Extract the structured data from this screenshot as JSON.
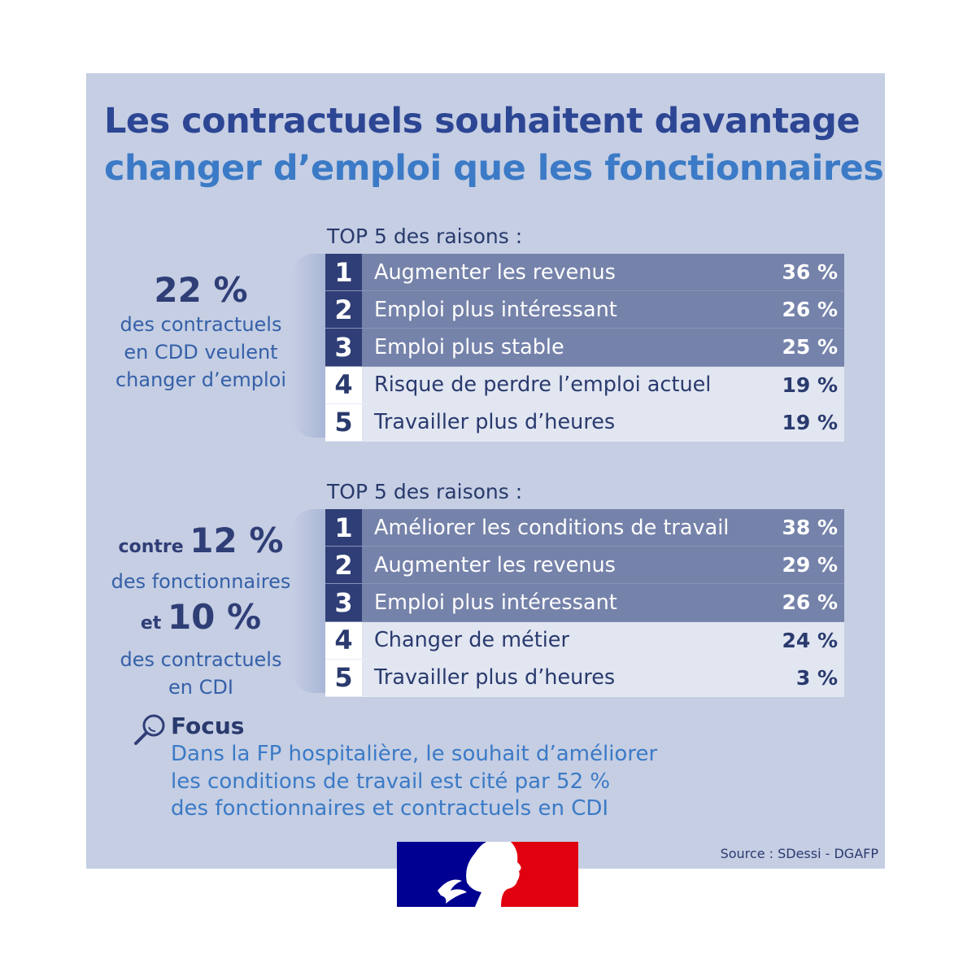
{
  "title": {
    "line1": "Les contractuels souhaitent davantage",
    "line2": "changer d’emploi que les fonctionnaires"
  },
  "section1": {
    "stat": "22 %",
    "desc": [
      "des contractuels",
      "en CDD veulent",
      "changer d’emploi"
    ],
    "top_label": "TOP 5 des raisons :",
    "rows": [
      {
        "rank": "1",
        "label": "Augmenter les revenus",
        "value": "36 %"
      },
      {
        "rank": "2",
        "label": "Emploi plus intéressant",
        "value": "26 %"
      },
      {
        "rank": "3",
        "label": "Emploi plus stable",
        "value": "25 %"
      },
      {
        "rank": "4",
        "label": "Risque de perdre l’emploi actuel",
        "value": "19 %"
      },
      {
        "rank": "5",
        "label": "Travailler plus d’heures",
        "value": "19 %"
      }
    ]
  },
  "section2": {
    "prefix1": "contre",
    "stat1": "12 %",
    "desc1": "des fonctionnaires",
    "prefix2": "et",
    "stat2": "10 %",
    "desc2": [
      "des contractuels",
      "en CDI"
    ],
    "top_label": "TOP 5 des raisons :",
    "rows": [
      {
        "rank": "1",
        "label": "Améliorer les conditions de travail",
        "value": "38 %"
      },
      {
        "rank": "2",
        "label": "Augmenter les revenus",
        "value": "29 %"
      },
      {
        "rank": "3",
        "label": "Emploi plus intéressant",
        "value": "26 %"
      },
      {
        "rank": "4",
        "label": "Changer de métier",
        "value": "24 %"
      },
      {
        "rank": "5",
        "label": "Travailler plus d’heures",
        "value": "3 %"
      }
    ]
  },
  "focus": {
    "icon": "magnifier-icon",
    "title": "Focus",
    "lines": [
      "Dans la FP hospitalière, le souhait d’améliorer",
      "les conditions de travail est cité par 52 %",
      "des fonctionnaires et contractuels en CDI"
    ]
  },
  "source": "Source : SDessi - DGAFP",
  "colors": {
    "panel": "#c5cee3",
    "dark_blue": "#2f3e76",
    "title_dark": "#2d4694",
    "title_light": "#3b7ac6",
    "highlight_row": "#7582aa",
    "light_row": "#e1e6f1",
    "flag_blue": "#000091",
    "flag_red": "#e1000f"
  }
}
